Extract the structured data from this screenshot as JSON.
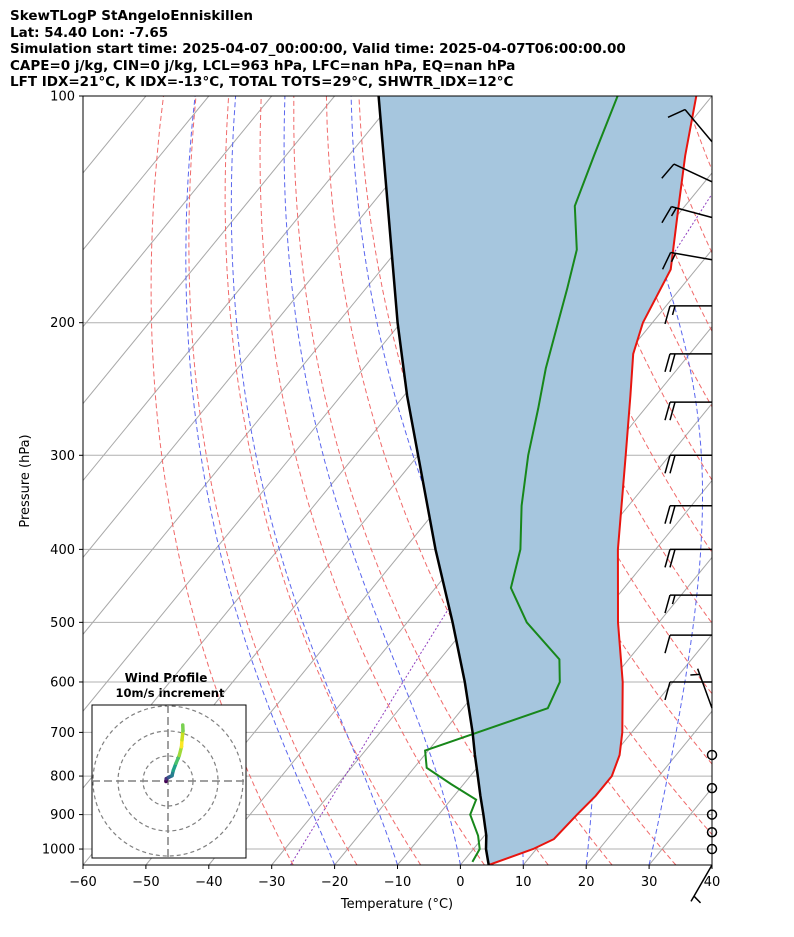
{
  "header": {
    "line1": "SkewTLogP StAngeloEnniskillen",
    "line2": "Lat: 54.40   Lon: -7.65",
    "line3": "Simulation start time: 2025-04-07_00:00:00, Valid time: 2025-04-07T06:00:00.00",
    "line4": "CAPE=0 j/kg, CIN=0 j/kg, LCL=963 hPa, LFC=nan hPa, EQ=nan hPa",
    "line5": "LFT IDX=21°C, K IDX=-13°C, TOTAL TOTS=29°C, SHWTR_IDX=12°C"
  },
  "chart_data": {
    "type": "line",
    "xlabel": "Temperature (°C)",
    "ylabel": "Pressure (hPa)",
    "xlim": [
      -60,
      40
    ],
    "ylim": [
      1050,
      100
    ],
    "y_scale": "log",
    "skew": true,
    "grid": true,
    "x_ticks": [
      "−60",
      "−50",
      "−40",
      "−30",
      "−20",
      "−10",
      "0",
      "10",
      "20",
      "30",
      "40"
    ],
    "y_ticks": [
      "100",
      "200",
      "300",
      "400",
      "500",
      "600",
      "700",
      "800",
      "900",
      "1000"
    ],
    "series": [
      {
        "role": "temperature",
        "color": "#e8150f",
        "points": [
          [
            1050,
            4.5
          ],
          [
            1000,
            9.5
          ],
          [
            970,
            11.5
          ],
          [
            900,
            12.0
          ],
          [
            850,
            12.5
          ],
          [
            800,
            12.5
          ],
          [
            750,
            11.0
          ],
          [
            700,
            8.5
          ],
          [
            600,
            2.0
          ],
          [
            500,
            -6.5
          ],
          [
            400,
            -16.0
          ],
          [
            300,
            -27.0
          ],
          [
            250,
            -34.0
          ],
          [
            220,
            -39.0
          ],
          [
            200,
            -41.5
          ],
          [
            170,
            -44.0
          ],
          [
            140,
            -51.0
          ],
          [
            120,
            -56.5
          ],
          [
            100,
            -62.5
          ]
        ]
      },
      {
        "role": "dewpoint",
        "color": "#17871a",
        "points": [
          [
            1040,
            1.5
          ],
          [
            1000,
            1.0
          ],
          [
            960,
            -1.0
          ],
          [
            900,
            -5.0
          ],
          [
            860,
            -6.0
          ],
          [
            820,
            -12.0
          ],
          [
            780,
            -18.0
          ],
          [
            740,
            -20.5
          ],
          [
            650,
            -6.5
          ],
          [
            600,
            -8.0
          ],
          [
            560,
            -11.0
          ],
          [
            500,
            -21.0
          ],
          [
            450,
            -28.0
          ],
          [
            400,
            -31.5
          ],
          [
            350,
            -37.0
          ],
          [
            300,
            -42.5
          ],
          [
            260,
            -47.0
          ],
          [
            230,
            -51.0
          ],
          [
            200,
            -55.0
          ],
          [
            180,
            -58.0
          ],
          [
            160,
            -61.5
          ],
          [
            140,
            -67.5
          ],
          [
            120,
            -71.0
          ],
          [
            100,
            -75.0
          ]
        ]
      },
      {
        "role": "parcel",
        "color": "#000000",
        "points": [
          [
            1050,
            4.5
          ],
          [
            1000,
            2.0
          ],
          [
            960,
            0.3
          ],
          [
            900,
            -2.9
          ],
          [
            850,
            -5.8
          ],
          [
            800,
            -8.8
          ],
          [
            750,
            -12.0
          ],
          [
            700,
            -15.3
          ],
          [
            600,
            -23.1
          ],
          [
            500,
            -32.8
          ],
          [
            400,
            -45.0
          ],
          [
            300,
            -60.0
          ],
          [
            250,
            -69.5
          ],
          [
            200,
            -80.5
          ],
          [
            150,
            -94.0
          ],
          [
            100,
            -113.0
          ]
        ]
      }
    ],
    "shading": {
      "between": [
        "parcel",
        "temperature"
      ],
      "color": "#a6c6de"
    },
    "wind_barbs": [
      {
        "p": 1050,
        "speed_kt": 5,
        "dir_deg": 210
      },
      {
        "p": 1000,
        "speed_kt": 0,
        "dir_deg": 0
      },
      {
        "p": 950,
        "speed_kt": 0,
        "dir_deg": 0
      },
      {
        "p": 900,
        "speed_kt": 0,
        "dir_deg": 0
      },
      {
        "p": 830,
        "speed_kt": 0,
        "dir_deg": 0
      },
      {
        "p": 750,
        "speed_kt": 0,
        "dir_deg": 0
      },
      {
        "p": 650,
        "speed_kt": 5,
        "dir_deg": 340
      },
      {
        "p": 600,
        "speed_kt": 10,
        "dir_deg": 270
      },
      {
        "p": 520,
        "speed_kt": 10,
        "dir_deg": 270
      },
      {
        "p": 460,
        "speed_kt": 15,
        "dir_deg": 270
      },
      {
        "p": 400,
        "speed_kt": 20,
        "dir_deg": 270
      },
      {
        "p": 350,
        "speed_kt": 20,
        "dir_deg": 270
      },
      {
        "p": 300,
        "speed_kt": 20,
        "dir_deg": 270
      },
      {
        "p": 255,
        "speed_kt": 20,
        "dir_deg": 270
      },
      {
        "p": 220,
        "speed_kt": 20,
        "dir_deg": 270
      },
      {
        "p": 190,
        "speed_kt": 15,
        "dir_deg": 270
      },
      {
        "p": 165,
        "speed_kt": 15,
        "dir_deg": 280
      },
      {
        "p": 145,
        "speed_kt": 15,
        "dir_deg": 285
      },
      {
        "p": 130,
        "speed_kt": 10,
        "dir_deg": 295
      },
      {
        "p": 115,
        "speed_kt": 10,
        "dir_deg": 320
      }
    ],
    "hodograph": {
      "title": "Wind Profile",
      "subtitle": "10m/s increment",
      "rings_ms": [
        10,
        20,
        30
      ],
      "points": [
        [
          -0.8,
          -0.2
        ],
        [
          -0.7,
          0.9
        ],
        [
          0.3,
          1.5
        ],
        [
          1.6,
          2.1
        ],
        [
          2.1,
          4.2
        ],
        [
          3.2,
          7.1
        ],
        [
          4.5,
          10.2
        ],
        [
          5.4,
          13.7
        ],
        [
          5.6,
          16.5
        ],
        [
          6.0,
          20.0
        ],
        [
          5.9,
          22.4
        ]
      ]
    }
  }
}
